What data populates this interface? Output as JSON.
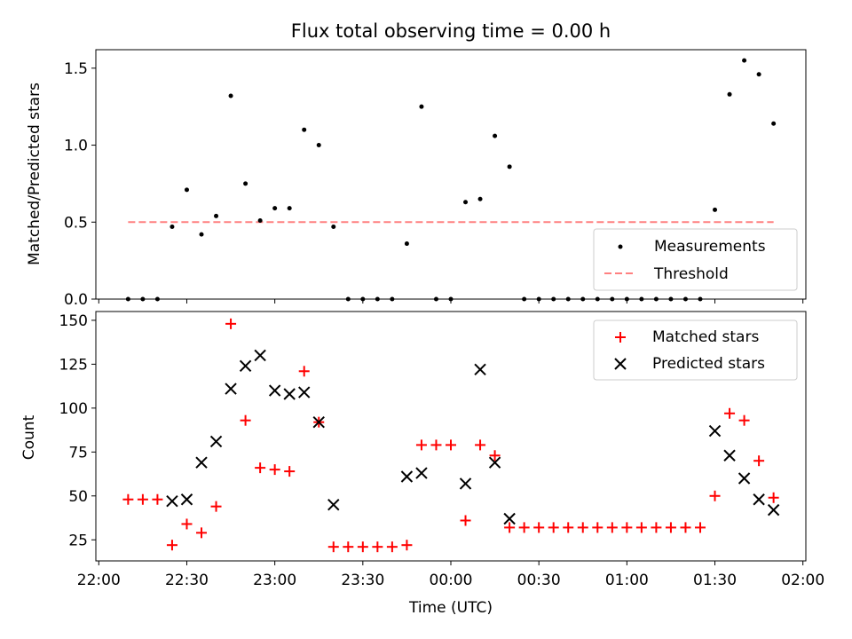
{
  "title": "Flux total observing time = 0.00 h",
  "chart_data": [
    {
      "type": "scatter",
      "ylabel": "Matched/Predicted stars",
      "ylim": [
        0,
        1.62
      ],
      "yticks": [
        "0.0",
        "0.5",
        "1.0",
        "1.5"
      ],
      "xlim": [
        "21:59",
        "02:01"
      ],
      "legend": "bottom-right",
      "threshold": {
        "name": "Threshold",
        "value": 0.5,
        "x_start": "22:10",
        "x_end": "01:50",
        "color": "#ff8080"
      },
      "series": [
        {
          "name": "Measurements",
          "color": "#000000",
          "x": [
            "22:10",
            "22:15",
            "22:20",
            "22:25",
            "22:30",
            "22:35",
            "22:40",
            "22:45",
            "22:50",
            "22:55",
            "23:00",
            "23:05",
            "23:10",
            "23:15",
            "23:20",
            "23:25",
            "23:30",
            "23:35",
            "23:40",
            "23:45",
            "23:50",
            "23:55",
            "00:00",
            "00:05",
            "00:10",
            "00:15",
            "00:20",
            "00:25",
            "00:30",
            "00:35",
            "00:40",
            "00:45",
            "00:50",
            "00:55",
            "01:00",
            "01:05",
            "01:10",
            "01:15",
            "01:20",
            "01:25",
            "01:30",
            "01:35",
            "01:40",
            "01:45",
            "01:50"
          ],
          "y": [
            0,
            0,
            0,
            0.47,
            0.71,
            0.42,
            0.54,
            1.32,
            0.75,
            0.51,
            0.59,
            0.59,
            1.1,
            1.0,
            0.47,
            0,
            0,
            0,
            0,
            0.36,
            1.25,
            0,
            0,
            0.63,
            0.65,
            1.06,
            0.86,
            0,
            0,
            0,
            0,
            0,
            0,
            0,
            0,
            0,
            0,
            0,
            0,
            0,
            0.58,
            1.33,
            1.55,
            1.46,
            1.14
          ]
        }
      ]
    },
    {
      "type": "scatter",
      "xlabel": "Time (UTC)",
      "ylabel": "Count",
      "ylim": [
        13,
        155
      ],
      "yticks": [
        "25",
        "50",
        "75",
        "100",
        "125",
        "150"
      ],
      "xlim": [
        "21:59",
        "02:01"
      ],
      "xticks": [
        "22:00",
        "22:30",
        "23:00",
        "23:30",
        "00:00",
        "00:30",
        "01:00",
        "01:30",
        "02:00"
      ],
      "legend": "top-right",
      "series": [
        {
          "name": "Matched stars",
          "marker": "plus",
          "color": "#ff0000",
          "x": [
            "22:10",
            "22:15",
            "22:20",
            "22:25",
            "22:30",
            "22:35",
            "22:40",
            "22:45",
            "22:50",
            "22:55",
            "23:00",
            "23:05",
            "23:10",
            "23:15",
            "23:20",
            "23:25",
            "23:30",
            "23:35",
            "23:40",
            "23:45",
            "23:50",
            "23:55",
            "00:00",
            "00:05",
            "00:10",
            "00:15",
            "00:20",
            "00:25",
            "00:30",
            "00:35",
            "00:40",
            "00:45",
            "00:50",
            "00:55",
            "01:00",
            "01:05",
            "01:10",
            "01:15",
            "01:20",
            "01:25",
            "01:30",
            "01:35",
            "01:40",
            "01:45",
            "01:50"
          ],
          "y": [
            48,
            48,
            48,
            22,
            34,
            29,
            44,
            148,
            93,
            66,
            65,
            64,
            121,
            92,
            21,
            21,
            21,
            21,
            21,
            22,
            79,
            79,
            79,
            36,
            79,
            73,
            32,
            32,
            32,
            32,
            32,
            32,
            32,
            32,
            32,
            32,
            32,
            32,
            32,
            32,
            50,
            97,
            93,
            70,
            49
          ]
        },
        {
          "name": "Predicted stars",
          "marker": "x",
          "color": "#000000",
          "x": [
            "22:25",
            "22:30",
            "22:35",
            "22:40",
            "22:45",
            "22:50",
            "22:55",
            "23:00",
            "23:05",
            "23:10",
            "23:15",
            "23:20",
            "23:45",
            "23:50",
            "00:05",
            "00:10",
            "00:15",
            "00:20",
            "01:30",
            "01:35",
            "01:40",
            "01:45",
            "01:50"
          ],
          "y": [
            47,
            48,
            69,
            81,
            111,
            124,
            130,
            110,
            108,
            109,
            92,
            45,
            61,
            63,
            57,
            122,
            69,
            37,
            87,
            73,
            60,
            48,
            42
          ]
        }
      ]
    }
  ]
}
